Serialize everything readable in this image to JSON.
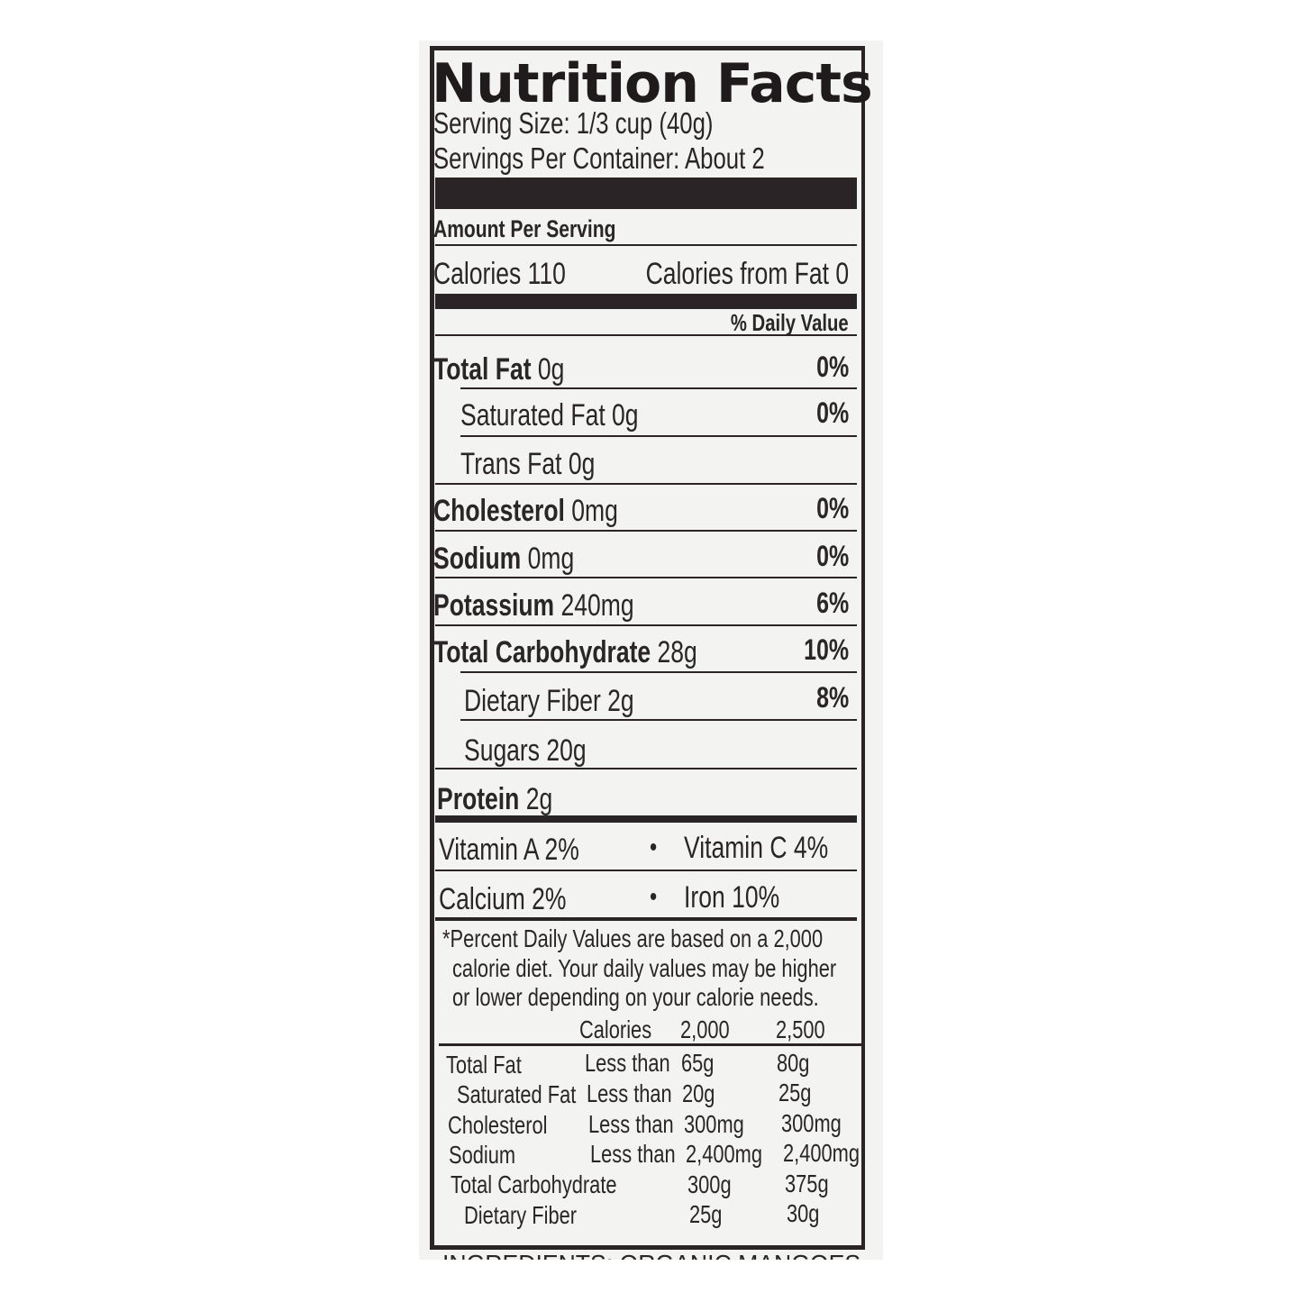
{
  "label": {
    "title": "Nutrition Facts",
    "serving_size": "Serving Size: 1/3 cup (40g)",
    "servings_per_container": "Servings Per Container: About 2",
    "amount_per_serving": "Amount Per Serving",
    "calories": "Calories 110",
    "calories_from_fat": "Calories from Fat 0",
    "daily_value_header": "% Daily Value",
    "nutrients": [
      {
        "name": "Total Fat",
        "amount": "0g",
        "dv": "0%"
      },
      {
        "name": "Saturated Fat 0g",
        "amount": "",
        "dv": "0%"
      },
      {
        "name": "Trans Fat 0g",
        "amount": "",
        "dv": ""
      },
      {
        "name": "Cholesterol",
        "amount": "0mg",
        "dv": "0%"
      },
      {
        "name": "Sodium",
        "amount": "0mg",
        "dv": "0%"
      },
      {
        "name": "Potassium",
        "amount": "240mg",
        "dv": "6%"
      },
      {
        "name": "Total Carbohydrate",
        "amount": "28g",
        "dv": "10%"
      },
      {
        "name": "Dietary Fiber 2g",
        "amount": "",
        "dv": "8%"
      },
      {
        "name": "Sugars 20g",
        "amount": "",
        "dv": ""
      },
      {
        "name": "Protein",
        "amount": "2g",
        "dv": ""
      }
    ],
    "vitamins": {
      "vitamin_a": "Vitamin A 2%",
      "vitamin_c": "Vitamin C 4%",
      "calcium": "Calcium 2%",
      "iron": "Iron 10%",
      "bullet": "•"
    },
    "footnote": [
      "*Percent Daily Values are based on a 2,000",
      "calorie diet. Your daily values may be higher",
      "or lower depending on your calorie needs."
    ],
    "dv_table": {
      "header": [
        "Calories",
        "2,000",
        "2,500"
      ],
      "rows": [
        [
          "Total Fat",
          "Less than",
          "65g",
          "80g"
        ],
        [
          "Saturated Fat",
          "Less than",
          "20g",
          "25g"
        ],
        [
          "Cholesterol",
          "Less than",
          "300mg",
          "300mg"
        ],
        [
          "Sodium",
          "Less than",
          "2,400mg",
          "2,400mg"
        ],
        [
          "Total Carbohydrate",
          "",
          "300g",
          "375g"
        ],
        [
          "Dietary Fiber",
          "",
          "25g",
          "30g"
        ]
      ]
    },
    "ingredients": "INGREDIENTS: ORGANIC MANGOES"
  }
}
